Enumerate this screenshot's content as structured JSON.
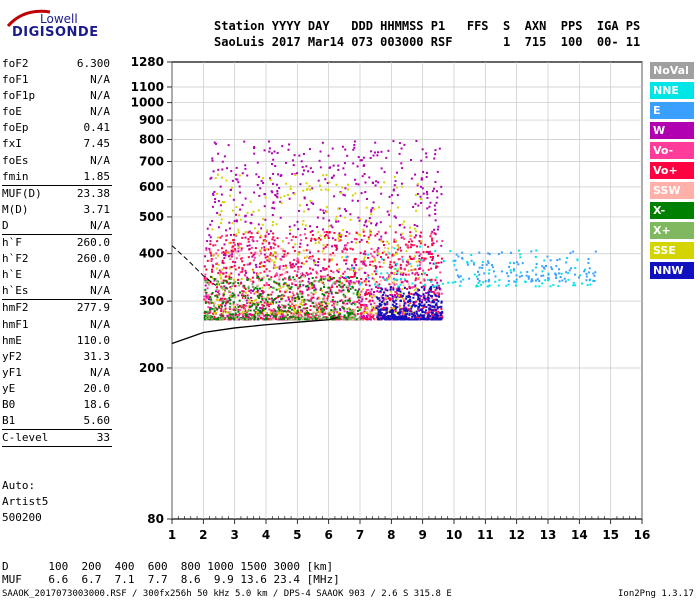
{
  "logo": {
    "line1": "Lowell",
    "line2": "DIGISONDE"
  },
  "header": {
    "row1": "Station YYYY DAY   DDD HHMMSS P1   FFS  S  AXN  PPS  IGA PS",
    "row2": "SaoLuis 2017 Mar14 073 003000 RSF       1  715  100  00- 11"
  },
  "params": [
    {
      "name": "foF2",
      "value": "6.300"
    },
    {
      "name": "foF1",
      "value": "N/A"
    },
    {
      "name": "foF1p",
      "value": "N/A"
    },
    {
      "name": "foE",
      "value": "N/A"
    },
    {
      "name": "foEp",
      "value": "0.41"
    },
    {
      "name": "fxI",
      "value": "7.45"
    },
    {
      "name": "foEs",
      "value": "N/A"
    },
    {
      "name": "fmin",
      "value": "1.85"
    },
    {
      "sep": true
    },
    {
      "name": "MUF(D)",
      "value": "23.38"
    },
    {
      "name": "M(D)",
      "value": "3.71"
    },
    {
      "name": "D",
      "value": "N/A"
    },
    {
      "sep": true
    },
    {
      "name": "h`F",
      "value": "260.0"
    },
    {
      "name": "h`F2",
      "value": "260.0"
    },
    {
      "name": "h`E",
      "value": "N/A"
    },
    {
      "name": "h`Es",
      "value": "N/A"
    },
    {
      "sep": true
    },
    {
      "name": "hmF2",
      "value": "277.9"
    },
    {
      "name": "hmF1",
      "value": "N/A"
    },
    {
      "name": "hmE",
      "value": "110.0"
    },
    {
      "name": "yF2",
      "value": "31.3"
    },
    {
      "name": "yF1",
      "value": "N/A"
    },
    {
      "name": "yE",
      "value": "20.0"
    },
    {
      "name": "B0",
      "value": "18.6"
    },
    {
      "name": "B1",
      "value": "5.60"
    },
    {
      "sep": true
    },
    {
      "name": "C-level",
      "value": "33"
    },
    {
      "sep": true
    }
  ],
  "auto_lines": [
    "Auto:",
    "Artist5",
    "500200"
  ],
  "legend": [
    {
      "label": "NoVal",
      "color": "#a0a0a0"
    },
    {
      "label": "NNE",
      "color": "#00e5e5"
    },
    {
      "label": "E",
      "color": "#3aa0ff"
    },
    {
      "label": "W",
      "color": "#b000b0"
    },
    {
      "label": "Vo-",
      "color": "#ff3c9a"
    },
    {
      "label": "Vo+",
      "color": "#ff0040"
    },
    {
      "label": "SSW",
      "color": "#ffb0a8"
    },
    {
      "label": "X-",
      "color": "#008000"
    },
    {
      "label": "X+",
      "color": "#80b860"
    },
    {
      "label": "SSE",
      "color": "#d4d400"
    },
    {
      "label": "NNW",
      "color": "#1010c0"
    }
  ],
  "bottom": {
    "d_row": "D      100  200  400  600  800 1000 1500 3000 [km]",
    "muf_row": "MUF    6.6  6.7  7.1  7.7  8.6  9.9 13.6 23.4 [MHz]",
    "footer_left": "SAAOK_2017073003000.RSF / 300fx256h 50 kHz 5.0 km / DPS-4 SAAOK 903 / 2.6 S 315.8 E",
    "footer_right": "Ion2Png 1.3.17"
  },
  "chart_data": {
    "type": "scatter",
    "title": "",
    "xlabel": "",
    "ylabel": "",
    "xlim": [
      1,
      16
    ],
    "ylim": [
      80,
      1280
    ],
    "y_scale": "log",
    "x_ticks": [
      1,
      2,
      3,
      4,
      5,
      6,
      7,
      8,
      9,
      10,
      11,
      12,
      13,
      14,
      15,
      16
    ],
    "y_ticks": [
      80,
      200,
      300,
      400,
      500,
      600,
      700,
      800,
      900,
      1000,
      1100,
      1280
    ],
    "grid": true,
    "legend_position": "right",
    "clusters": [
      {
        "series": "W",
        "xmin": 2.0,
        "xmax": 9.6,
        "ymin": 270,
        "ymax": 800,
        "density": "high"
      },
      {
        "series": "Vo+",
        "xmin": 2.0,
        "xmax": 9.6,
        "ymin": 270,
        "ymax": 460,
        "density": "high"
      },
      {
        "series": "Vo-",
        "xmin": 2.0,
        "xmax": 9.6,
        "ymin": 270,
        "ymax": 460,
        "density": "medium"
      },
      {
        "series": "SSE",
        "xmin": 2.2,
        "xmax": 9.0,
        "ymin": 280,
        "ymax": 650,
        "density": "medium"
      },
      {
        "series": "X-",
        "xmin": 2.0,
        "xmax": 7.0,
        "ymin": 270,
        "ymax": 350,
        "density": "medium"
      },
      {
        "series": "X+",
        "xmin": 2.0,
        "xmax": 7.0,
        "ymin": 270,
        "ymax": 350,
        "density": "low"
      },
      {
        "series": "SSW",
        "xmin": 2.0,
        "xmax": 9.0,
        "ymin": 270,
        "ymax": 420,
        "density": "low"
      },
      {
        "series": "NNW",
        "xmin": 7.5,
        "xmax": 9.6,
        "ymin": 270,
        "ymax": 330,
        "density": "medium"
      },
      {
        "series": "NNE",
        "xmin": 6.5,
        "xmax": 14.5,
        "ymin": 330,
        "ymax": 420,
        "density": "low"
      },
      {
        "series": "E",
        "xmin": 10.0,
        "xmax": 14.5,
        "ymin": 340,
        "ymax": 410,
        "density": "low"
      }
    ],
    "f2_trace_curve": [
      {
        "x": 1.0,
        "y": 232
      },
      {
        "x": 2.0,
        "y": 248
      },
      {
        "x": 3.0,
        "y": 255
      },
      {
        "x": 4.0,
        "y": 260
      },
      {
        "x": 5.0,
        "y": 264
      },
      {
        "x": 6.0,
        "y": 268
      },
      {
        "x": 6.3,
        "y": 272
      }
    ],
    "dashed_curve": [
      {
        "x": 1.0,
        "y": 420
      },
      {
        "x": 1.5,
        "y": 385
      },
      {
        "x": 2.0,
        "y": 350
      },
      {
        "x": 2.4,
        "y": 330
      }
    ]
  }
}
